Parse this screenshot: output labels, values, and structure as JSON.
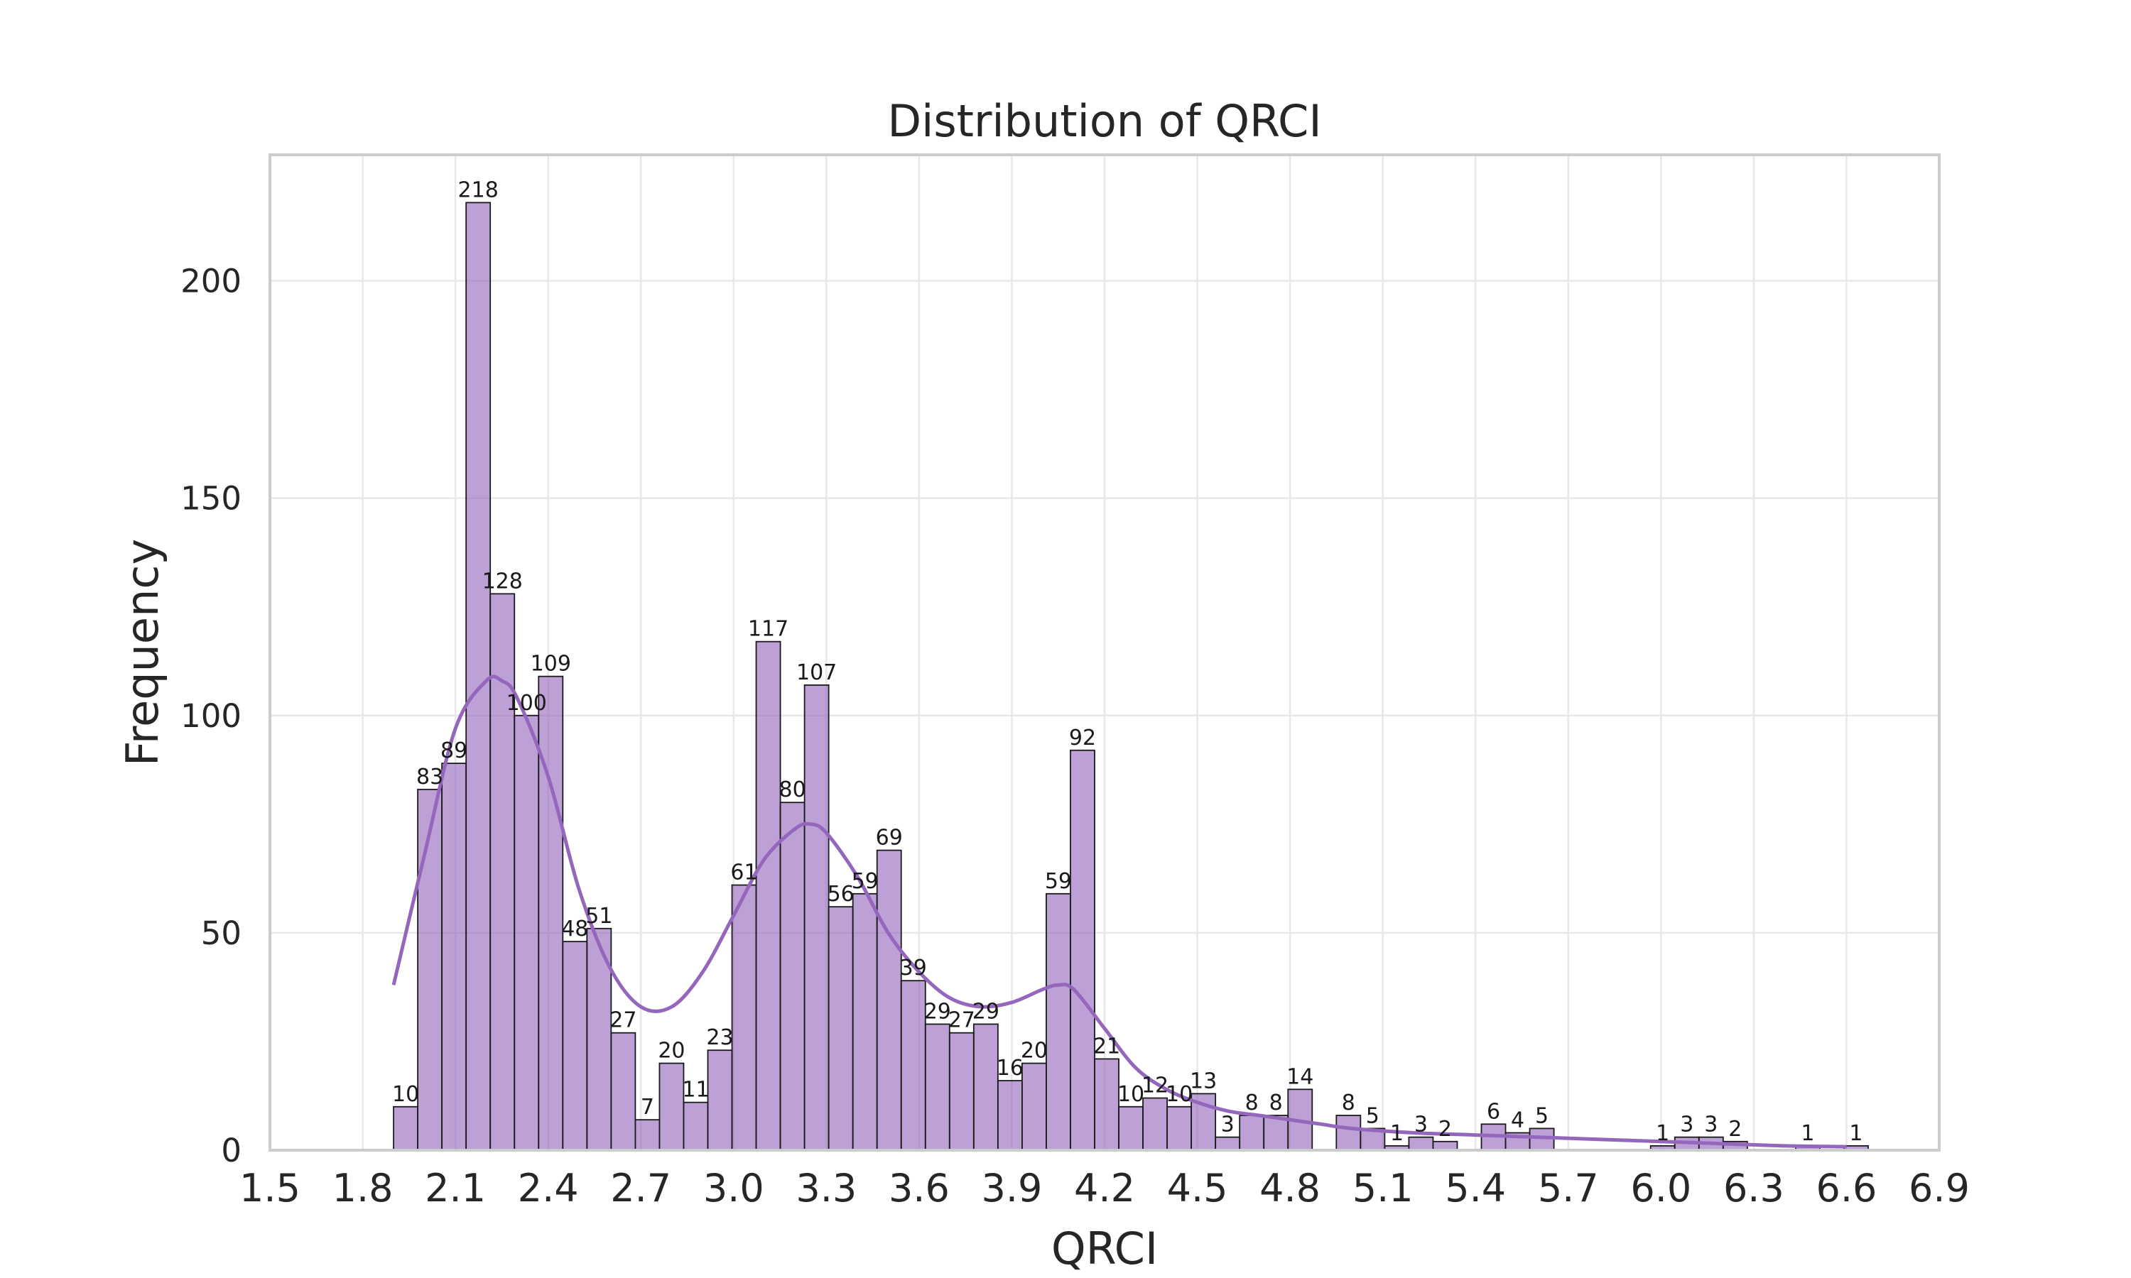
{
  "chart_data": {
    "type": "bar",
    "subtype": "histogram",
    "title": "Distribution of QRCI",
    "xlabel": "QRCI",
    "ylabel": "Frequency",
    "xlim": [
      1.5,
      6.9
    ],
    "ylim": [
      0,
      229
    ],
    "xticks": [
      "1.5",
      "1.8",
      "2.1",
      "2.4",
      "2.7",
      "3.0",
      "3.3",
      "3.6",
      "3.9",
      "4.2",
      "4.5",
      "4.8",
      "5.1",
      "5.4",
      "5.7",
      "6.0",
      "6.3",
      "6.6",
      "6.9"
    ],
    "yticks": [
      0,
      50,
      100,
      150,
      200
    ],
    "grid": true,
    "bar_color": "#9467bd",
    "bin_start": 1.9,
    "bin_width": 0.0782,
    "bins": [
      {
        "value": 10,
        "label": "10"
      },
      {
        "value": 83,
        "label": "83"
      },
      {
        "value": 89,
        "label": "89"
      },
      {
        "value": 218,
        "label": "218"
      },
      {
        "value": 128,
        "label": "128"
      },
      {
        "value": 100,
        "label": "100"
      },
      {
        "value": 109,
        "label": "109"
      },
      {
        "value": 48,
        "label": "48"
      },
      {
        "value": 51,
        "label": "51"
      },
      {
        "value": 27,
        "label": "27"
      },
      {
        "value": 7,
        "label": "7"
      },
      {
        "value": 20,
        "label": "20"
      },
      {
        "value": 11,
        "label": "11"
      },
      {
        "value": 23,
        "label": "23"
      },
      {
        "value": 61,
        "label": "61"
      },
      {
        "value": 117,
        "label": "117"
      },
      {
        "value": 80,
        "label": "80"
      },
      {
        "value": 107,
        "label": "107"
      },
      {
        "value": 56,
        "label": "56"
      },
      {
        "value": 59,
        "label": "59"
      },
      {
        "value": 69,
        "label": "69"
      },
      {
        "value": 39,
        "label": "39"
      },
      {
        "value": 29,
        "label": "29"
      },
      {
        "value": 27,
        "label": "27"
      },
      {
        "value": 29,
        "label": "29"
      },
      {
        "value": 16,
        "label": "16"
      },
      {
        "value": 20,
        "label": "20"
      },
      {
        "value": 59,
        "label": "59"
      },
      {
        "value": 92,
        "label": "92"
      },
      {
        "value": 21,
        "label": "21"
      },
      {
        "value": 10,
        "label": "10"
      },
      {
        "value": 12,
        "label": "12"
      },
      {
        "value": 10,
        "label": "10"
      },
      {
        "value": 13,
        "label": "13"
      },
      {
        "value": 3,
        "label": "3"
      },
      {
        "value": 8,
        "label": "8"
      },
      {
        "value": 8,
        "label": "8"
      },
      {
        "value": 14,
        "label": "14"
      },
      {
        "value": 0,
        "label": ""
      },
      {
        "value": 8,
        "label": "8"
      },
      {
        "value": 5,
        "label": "5"
      },
      {
        "value": 1,
        "label": "1"
      },
      {
        "value": 3,
        "label": "3"
      },
      {
        "value": 2,
        "label": "2"
      },
      {
        "value": 0,
        "label": ""
      },
      {
        "value": 6,
        "label": "6"
      },
      {
        "value": 4,
        "label": "4"
      },
      {
        "value": 5,
        "label": "5"
      },
      {
        "value": 0,
        "label": ""
      },
      {
        "value": 0,
        "label": ""
      },
      {
        "value": 0,
        "label": ""
      },
      {
        "value": 0,
        "label": ""
      },
      {
        "value": 1,
        "label": "1"
      },
      {
        "value": 3,
        "label": "3"
      },
      {
        "value": 3,
        "label": "3"
      },
      {
        "value": 2,
        "label": "2"
      },
      {
        "value": 0,
        "label": ""
      },
      {
        "value": 0,
        "label": ""
      },
      {
        "value": 1,
        "label": "1"
      },
      {
        "value": 0,
        "label": ""
      },
      {
        "value": 1,
        "label": "1"
      }
    ],
    "kde": {
      "color": "#9467bd",
      "x": [
        1.9,
        2.0,
        2.1,
        2.2,
        2.25,
        2.3,
        2.4,
        2.5,
        2.6,
        2.7,
        2.8,
        2.9,
        3.0,
        3.1,
        3.2,
        3.25,
        3.3,
        3.4,
        3.5,
        3.6,
        3.7,
        3.8,
        3.9,
        4.0,
        4.05,
        4.1,
        4.2,
        4.3,
        4.4,
        4.5,
        4.6,
        4.7,
        4.8,
        4.9,
        5.0,
        5.2,
        5.4,
        5.6,
        5.8,
        6.0,
        6.2,
        6.4,
        6.6
      ],
      "y": [
        38,
        68,
        97,
        108,
        108,
        104,
        86,
        60,
        42,
        33,
        33,
        41,
        54,
        67,
        74,
        75,
        73,
        63,
        50,
        41,
        35,
        33,
        34,
        37,
        38,
        37,
        28,
        19,
        14,
        11,
        9,
        8,
        7,
        6,
        5,
        4,
        3.5,
        3,
        2.5,
        2,
        1.5,
        1,
        0.8
      ]
    }
  }
}
